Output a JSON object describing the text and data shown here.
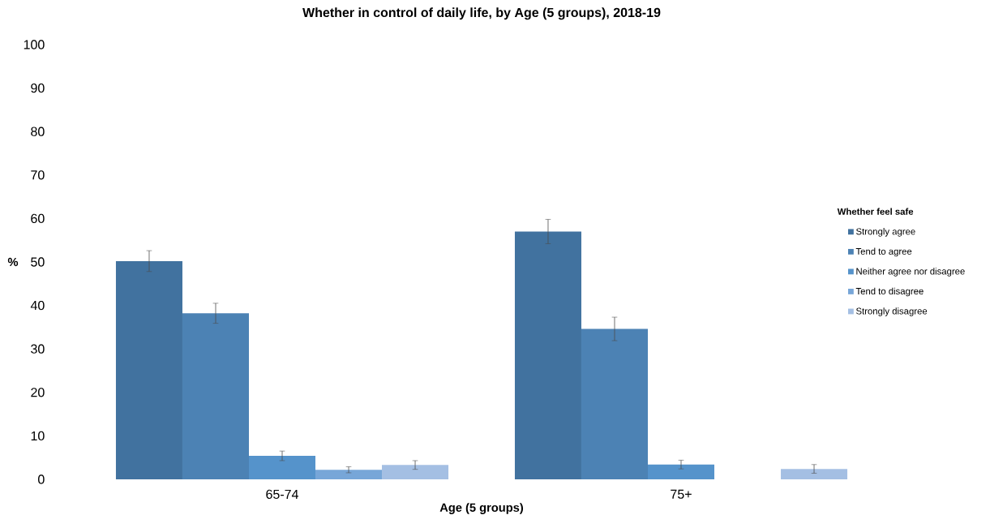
{
  "chart_data": {
    "type": "bar",
    "title": "Whether in control of daily life, by Age (5 groups), 2018-19",
    "xlabel": "Age (5 groups)",
    "ylabel": "%",
    "legend_title": "Whether feel safe",
    "categories": [
      "65-74",
      "75+"
    ],
    "series": [
      {
        "name": "Strongly agree",
        "color": "#41729f",
        "values": [
          50.2,
          57.0
        ],
        "errors": [
          2.4,
          2.8
        ]
      },
      {
        "name": "Tend to agree",
        "color": "#4c82b4",
        "values": [
          38.2,
          34.6
        ],
        "errors": [
          2.3,
          2.7
        ]
      },
      {
        "name": "Neither agree nor disagree",
        "color": "#5593cb",
        "values": [
          5.4,
          3.4
        ],
        "errors": [
          1.1,
          1.0
        ]
      },
      {
        "name": "Tend to disagree",
        "color": "#77a6d8",
        "values": [
          2.2,
          null
        ],
        "errors": [
          0.7,
          null
        ]
      },
      {
        "name": "Strongly disagree",
        "color": "#a4bfe3",
        "values": [
          3.3,
          2.4
        ],
        "errors": [
          1.0,
          1.0
        ]
      }
    ],
    "ylim": [
      0,
      100
    ],
    "yticks": [
      0,
      10,
      20,
      30,
      40,
      50,
      60,
      70,
      80,
      90,
      100
    ],
    "legend": "right",
    "grid": false
  }
}
